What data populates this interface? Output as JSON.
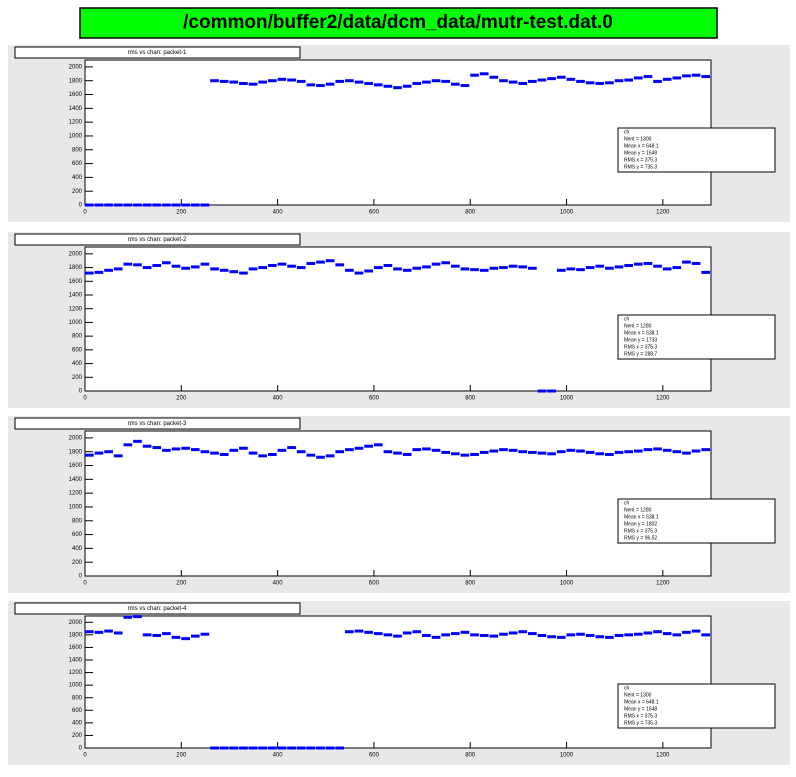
{
  "header": {
    "title": "/common/buffer2/data/dcm_data/mutr-test.dat.0"
  },
  "chart_data": [
    {
      "type": "scatter",
      "title": "rms vs chan: packet-1",
      "x": [
        0,
        20,
        40,
        60,
        80,
        100,
        120,
        140,
        160,
        180,
        200,
        220,
        240,
        260,
        280,
        300,
        320,
        340,
        360,
        380,
        400,
        420,
        440,
        460,
        480,
        500,
        520,
        540,
        560,
        580,
        600,
        620,
        640,
        660,
        680,
        700,
        720,
        740,
        760,
        780,
        800,
        820,
        840,
        860,
        880,
        900,
        920,
        940,
        960,
        980,
        1000,
        1020,
        1040,
        1060,
        1080,
        1100,
        1120,
        1140,
        1160,
        1180,
        1200,
        1220,
        1240,
        1260,
        1280
      ],
      "series": [
        {
          "color": "#0000ff",
          "values": [
            0,
            0,
            0,
            0,
            0,
            0,
            0,
            0,
            0,
            0,
            0,
            0,
            0,
            1800,
            1790,
            1780,
            1760,
            1750,
            1780,
            1800,
            1820,
            1810,
            1790,
            1740,
            1730,
            1750,
            1790,
            1800,
            1780,
            1760,
            1740,
            1720,
            1700,
            1720,
            1760,
            1780,
            1800,
            1790,
            1750,
            1730,
            1880,
            1900,
            1850,
            1800,
            1780,
            1760,
            1790,
            1810,
            1830,
            1850,
            1820,
            1790,
            1770,
            1760,
            1770,
            1800,
            1810,
            1840,
            1860,
            1790,
            1820,
            1840,
            1870,
            1880,
            1860
          ]
        }
      ],
      "xlim": [
        0,
        1300
      ],
      "ylim": [
        0,
        2100
      ],
      "xticks": [
        0,
        200,
        400,
        600,
        800,
        1000,
        1200
      ],
      "yticks": [
        0,
        200,
        400,
        600,
        800,
        1000,
        1200,
        1400,
        1600,
        1800,
        2000
      ],
      "stats": {
        "title": "ch",
        "lines": [
          "Nent = 1300",
          "Mean x = 648.1",
          "Mean y = 1648",
          "RMS x = 375.3",
          "RMS y = 735.3"
        ]
      }
    },
    {
      "type": "scatter",
      "title": "rms vs chan: packet-2",
      "x": [
        0,
        20,
        40,
        60,
        80,
        100,
        120,
        140,
        160,
        180,
        200,
        220,
        240,
        260,
        280,
        300,
        320,
        340,
        360,
        380,
        400,
        420,
        440,
        460,
        480,
        500,
        520,
        540,
        560,
        580,
        600,
        620,
        640,
        660,
        680,
        700,
        720,
        740,
        760,
        780,
        800,
        820,
        840,
        860,
        880,
        900,
        920,
        940,
        960,
        980,
        1000,
        1020,
        1040,
        1060,
        1080,
        1100,
        1120,
        1140,
        1160,
        1180,
        1200,
        1220,
        1240,
        1260,
        1280
      ],
      "series": [
        {
          "color": "#0000ff",
          "values": [
            1720,
            1730,
            1760,
            1780,
            1850,
            1840,
            1800,
            1830,
            1870,
            1820,
            1790,
            1810,
            1850,
            1780,
            1760,
            1740,
            1720,
            1780,
            1800,
            1830,
            1850,
            1820,
            1800,
            1860,
            1880,
            1900,
            1840,
            1760,
            1720,
            1750,
            1800,
            1830,
            1780,
            1760,
            1790,
            1810,
            1850,
            1870,
            1820,
            1780,
            1770,
            1760,
            1790,
            1800,
            1820,
            1810,
            1790,
            0,
            0,
            1760,
            1780,
            1770,
            1800,
            1820,
            1790,
            1810,
            1830,
            1850,
            1860,
            1820,
            1780,
            1800,
            1880,
            1860,
            1730
          ]
        }
      ],
      "xlim": [
        0,
        1300
      ],
      "ylim": [
        0,
        2100
      ],
      "xticks": [
        0,
        200,
        400,
        600,
        800,
        1000,
        1200
      ],
      "yticks": [
        0,
        200,
        400,
        600,
        800,
        1000,
        1200,
        1400,
        1600,
        1800,
        2000
      ],
      "stats": {
        "title": "ch",
        "lines": [
          "Nent = 1280",
          "Mean x = 638.1",
          "Mean y = 1733",
          "RMS x = 375.3",
          "RMS y = 288.7"
        ]
      }
    },
    {
      "type": "scatter",
      "title": "rms vs chan: packet-3",
      "x": [
        0,
        20,
        40,
        60,
        80,
        100,
        120,
        140,
        160,
        180,
        200,
        220,
        240,
        260,
        280,
        300,
        320,
        340,
        360,
        380,
        400,
        420,
        440,
        460,
        480,
        500,
        520,
        540,
        560,
        580,
        600,
        620,
        640,
        660,
        680,
        700,
        720,
        740,
        760,
        780,
        800,
        820,
        840,
        860,
        880,
        900,
        920,
        940,
        960,
        980,
        1000,
        1020,
        1040,
        1060,
        1080,
        1100,
        1120,
        1140,
        1160,
        1180,
        1200,
        1220,
        1240,
        1260,
        1280
      ],
      "series": [
        {
          "color": "#0000ff",
          "values": [
            1750,
            1780,
            1800,
            1740,
            1900,
            1950,
            1880,
            1860,
            1820,
            1840,
            1850,
            1830,
            1800,
            1780,
            1760,
            1820,
            1850,
            1780,
            1740,
            1760,
            1820,
            1860,
            1800,
            1750,
            1720,
            1740,
            1800,
            1830,
            1850,
            1880,
            1900,
            1800,
            1780,
            1760,
            1830,
            1840,
            1820,
            1790,
            1770,
            1750,
            1760,
            1790,
            1810,
            1830,
            1820,
            1800,
            1790,
            1780,
            1770,
            1800,
            1820,
            1810,
            1790,
            1770,
            1760,
            1790,
            1800,
            1810,
            1830,
            1840,
            1820,
            1800,
            1780,
            1810,
            1830
          ]
        }
      ],
      "xlim": [
        0,
        1300
      ],
      "ylim": [
        0,
        2100
      ],
      "xticks": [
        0,
        200,
        400,
        600,
        800,
        1000,
        1200
      ],
      "yticks": [
        0,
        200,
        400,
        600,
        800,
        1000,
        1200,
        1400,
        1600,
        1800,
        2000
      ],
      "stats": {
        "title": "ch",
        "lines": [
          "Nent = 1280",
          "Mean x = 638.1",
          "Mean y = 1802",
          "RMS x = 375.3",
          "RMS y = 96.52"
        ]
      }
    },
    {
      "type": "scatter",
      "title": "rms vs chan: packet-4",
      "x": [
        0,
        20,
        40,
        60,
        80,
        100,
        120,
        140,
        160,
        180,
        200,
        220,
        240,
        260,
        280,
        300,
        320,
        340,
        360,
        380,
        400,
        420,
        440,
        460,
        480,
        500,
        520,
        540,
        560,
        580,
        600,
        620,
        640,
        660,
        680,
        700,
        720,
        740,
        760,
        780,
        800,
        820,
        840,
        860,
        880,
        900,
        920,
        940,
        960,
        980,
        1000,
        1020,
        1040,
        1060,
        1080,
        1100,
        1120,
        1140,
        1160,
        1180,
        1200,
        1220,
        1240,
        1260,
        1280
      ],
      "series": [
        {
          "color": "#0000ff",
          "values": [
            1850,
            1840,
            1860,
            1830,
            2080,
            2090,
            1800,
            1790,
            1820,
            1760,
            1740,
            1780,
            1810,
            0,
            0,
            0,
            0,
            0,
            0,
            0,
            0,
            0,
            0,
            0,
            0,
            0,
            0,
            1850,
            1860,
            1840,
            1820,
            1800,
            1780,
            1830,
            1850,
            1790,
            1760,
            1800,
            1820,
            1840,
            1800,
            1790,
            1780,
            1810,
            1830,
            1850,
            1820,
            1790,
            1770,
            1760,
            1800,
            1810,
            1790,
            1770,
            1760,
            1790,
            1800,
            1810,
            1830,
            1850,
            1820,
            1800,
            1840,
            1860,
            1800
          ]
        }
      ],
      "xlim": [
        0,
        1300
      ],
      "ylim": [
        0,
        2100
      ],
      "xticks": [
        0,
        200,
        400,
        600,
        800,
        1000,
        1200
      ],
      "yticks": [
        0,
        200,
        400,
        600,
        800,
        1000,
        1200,
        1400,
        1600,
        1800,
        2000
      ],
      "stats": {
        "title": "ch",
        "lines": [
          "Nent = 1300",
          "Mean x = 648.1",
          "Mean y = 1648",
          "RMS x = 375.3",
          "RMS y = 735.3"
        ]
      }
    }
  ]
}
